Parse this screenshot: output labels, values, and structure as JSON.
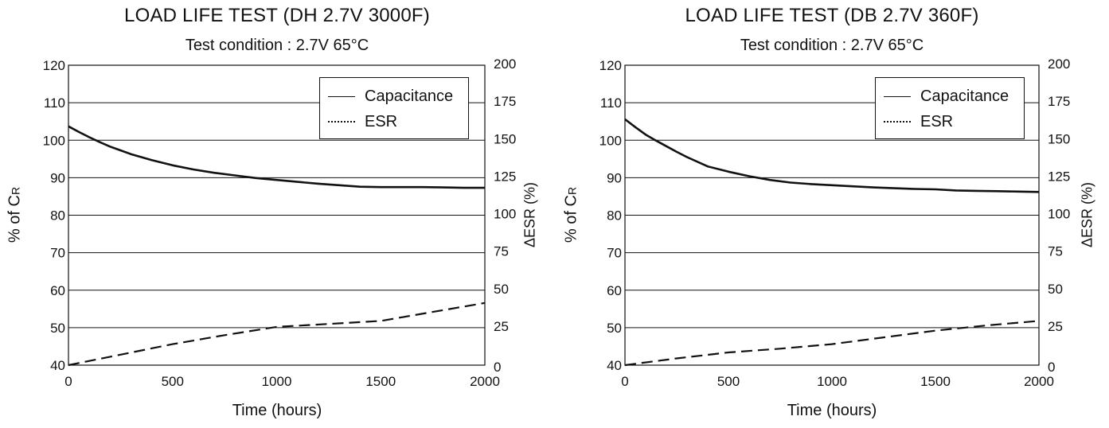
{
  "chart_data": [
    {
      "type": "line",
      "title": "LOAD LIFE TEST (DH 2.7V 3000F)",
      "subtitle": "Test condition : 2.7V 65°C",
      "xlabel": "Time (hours)",
      "ylabel": "% of C",
      "ylabel_subscript": "R",
      "y2label": "ΔESR (%)",
      "xlim": [
        0,
        2000
      ],
      "ylim": [
        40,
        120
      ],
      "y2lim": [
        0,
        200
      ],
      "x_ticks": [
        0,
        500,
        1000,
        1500,
        2000
      ],
      "y_ticks": [
        40,
        50,
        60,
        70,
        80,
        90,
        100,
        110,
        120
      ],
      "y2_ticks": [
        0,
        25,
        50,
        75,
        100,
        125,
        150,
        175,
        200
      ],
      "grid": "horizontal",
      "legend_position": "top-right",
      "series": [
        {
          "name": "Capacitance",
          "axis": "left",
          "style": "solid",
          "x": [
            0,
            50,
            100,
            150,
            200,
            250,
            300,
            400,
            500,
            600,
            700,
            800,
            900,
            1000,
            1100,
            1200,
            1300,
            1400,
            1500,
            1600,
            1700,
            1800,
            1900,
            2000
          ],
          "y": [
            103.7,
            102.2,
            100.8,
            99.5,
            98.3,
            97.3,
            96.3,
            94.7,
            93.3,
            92.2,
            91.3,
            90.6,
            89.9,
            89.4,
            88.9,
            88.4,
            88.0,
            87.6,
            87.5,
            87.5,
            87.5,
            87.4,
            87.3,
            87.3
          ]
        },
        {
          "name": "ESR",
          "axis": "right",
          "style": "dashed",
          "x": [
            0,
            250,
            500,
            750,
            1000,
            1250,
            1500,
            1750,
            2000
          ],
          "y": [
            0,
            7,
            14,
            20,
            25.5,
            27.5,
            29.5,
            35.5,
            41.5
          ]
        }
      ]
    },
    {
      "type": "line",
      "title": "LOAD LIFE TEST (DB 2.7V 360F)",
      "subtitle": "Test condition : 2.7V 65°C",
      "xlabel": "Time (hours)",
      "ylabel": "% of C",
      "ylabel_subscript": "R",
      "y2label": "ΔESR (%)",
      "xlim": [
        0,
        2000
      ],
      "ylim": [
        40,
        120
      ],
      "y2lim": [
        0,
        200
      ],
      "x_ticks": [
        0,
        500,
        1000,
        1500,
        2000
      ],
      "y_ticks": [
        40,
        50,
        60,
        70,
        80,
        90,
        100,
        110,
        120
      ],
      "y2_ticks": [
        0,
        25,
        50,
        75,
        100,
        125,
        150,
        175,
        200
      ],
      "grid": "horizontal",
      "legend_position": "top-right",
      "series": [
        {
          "name": "Capacitance",
          "axis": "left",
          "style": "solid",
          "x": [
            0,
            50,
            100,
            150,
            200,
            250,
            300,
            400,
            500,
            600,
            700,
            800,
            900,
            1000,
            1100,
            1200,
            1300,
            1400,
            1500,
            1600,
            1700,
            1800,
            1900,
            2000
          ],
          "y": [
            105.6,
            103.5,
            101.5,
            99.9,
            98.4,
            96.9,
            95.5,
            93.0,
            91.6,
            90.4,
            89.4,
            88.7,
            88.3,
            88.0,
            87.7,
            87.4,
            87.2,
            87.0,
            86.9,
            86.6,
            86.5,
            86.4,
            86.3,
            86.2
          ]
        },
        {
          "name": "ESR",
          "axis": "right",
          "style": "dashed",
          "x": [
            0,
            250,
            500,
            750,
            1000,
            1250,
            1500,
            1750,
            2000
          ],
          "y": [
            0,
            4.5,
            8.5,
            11,
            14,
            18.5,
            23,
            26.5,
            29.5
          ]
        }
      ]
    }
  ]
}
